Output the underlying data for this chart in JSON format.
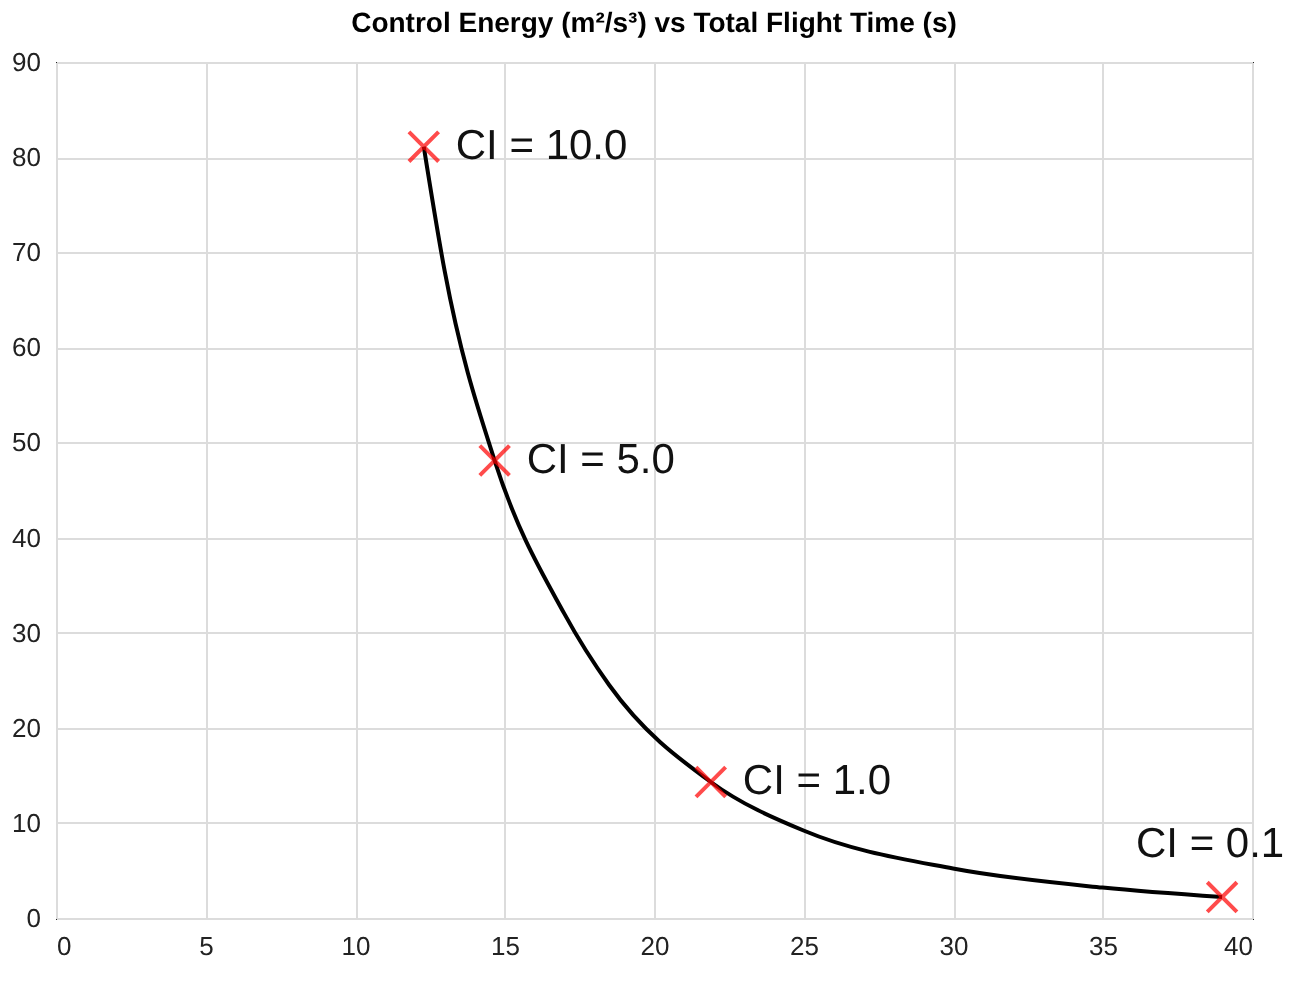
{
  "chart_data": {
    "type": "line",
    "title": "Control Energy (m²/s³) vs Total Flight Time (s)",
    "xlim": [
      0,
      40
    ],
    "xticks": [
      0,
      5,
      10,
      15,
      20,
      25,
      30,
      35,
      40
    ],
    "ylim": [
      0,
      90
    ],
    "yticks": [
      0,
      10,
      20,
      30,
      40,
      50,
      60,
      70,
      80,
      90
    ],
    "grid": true,
    "series": [
      {
        "color": "#000000",
        "marker": "none",
        "x": [
          12.3,
          13,
          14.67,
          17,
          18.5,
          21.9,
          25,
          30,
          35,
          39.0
        ],
        "values": [
          81.1,
          68,
          48.1,
          32,
          24.5,
          14.3,
          9.2,
          5.2,
          3.2,
          2.2
        ]
      },
      {
        "type": "scatter",
        "color": "#ff0000",
        "marker": "cross",
        "x": [
          12.3,
          14.67,
          21.9,
          39.0
        ],
        "values": [
          81.1,
          48.1,
          14.3,
          2.2
        ]
      }
    ],
    "annotations": [
      {
        "text": "CI = 10.0",
        "x": 12.3,
        "y": 81.1
      },
      {
        "text": "CI = 5.0",
        "x": 14.67,
        "y": 48.1
      },
      {
        "text": "CI = 1.0",
        "x": 21.9,
        "y": 14.3
      },
      {
        "text": "CI = 0.1",
        "x": 39.0,
        "y": 2.2
      }
    ]
  }
}
